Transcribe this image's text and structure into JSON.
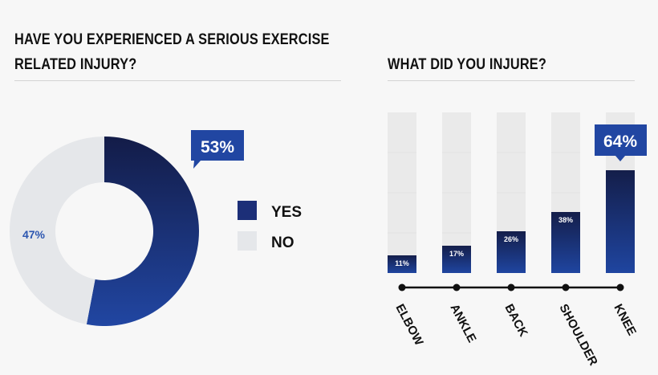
{
  "chart_data": [
    {
      "type": "pie",
      "title": "HAVE YOU EXPERIENCED A SERIOUS EXERCISE RELATED INJURY?",
      "title_lines": [
        "HAVE YOU EXPERIENCED A SERIOUS EXERCISE",
        "RELATED INJURY?"
      ],
      "style": "donut",
      "slices": [
        {
          "name": "YES",
          "value": 53,
          "label": "53%",
          "color": "#1f3f94"
        },
        {
          "name": "NO",
          "value": 47,
          "label": "47%",
          "color": "#e5e7ea"
        }
      ],
      "legend": "right"
    },
    {
      "type": "bar",
      "title": "WHAT DID YOU INJURE?",
      "categories": [
        "ELBOW",
        "ANKLE",
        "BACK",
        "SHOULDER",
        "KNEE"
      ],
      "values": [
        11,
        17,
        26,
        38,
        64
      ],
      "labels": [
        "11%",
        "17%",
        "26%",
        "38%",
        "64%"
      ],
      "ylim": [
        0,
        100
      ],
      "highlight": "KNEE",
      "colors": {
        "bar_top": "#141e4a",
        "bar_bottom": "#1f45a0",
        "track": "#eaeaea",
        "label_blue": "#2c56b0"
      }
    }
  ]
}
